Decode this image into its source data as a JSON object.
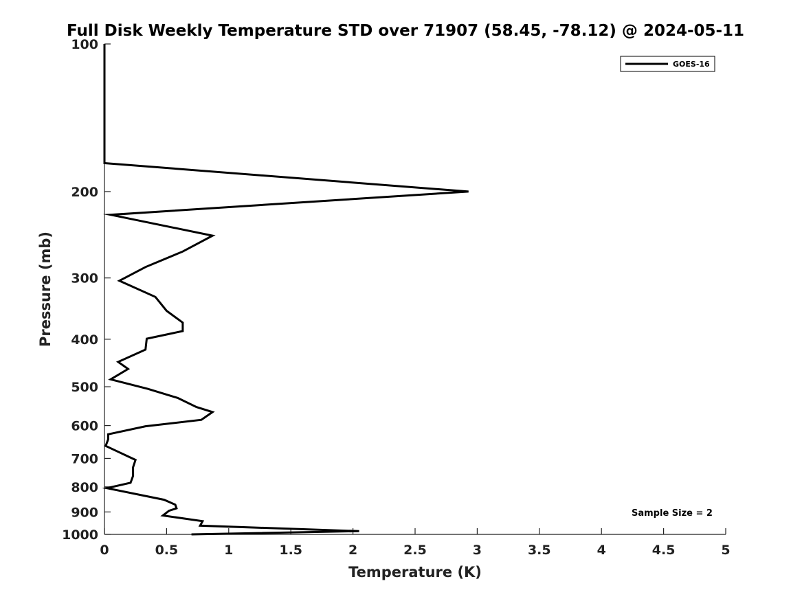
{
  "chart_data": {
    "type": "line",
    "title": "Full Disk Weekly Temperature STD over 71907 (58.45, -78.12) @ 2024-05-11",
    "xlabel": "Temperature (K)",
    "ylabel": "Pressure (mb)",
    "xlim": [
      0,
      5
    ],
    "ylim": [
      100,
      1000
    ],
    "y_scale": "log",
    "y_reversed": true,
    "grid": false,
    "legend_position": "top-right",
    "x_ticks": [
      "0",
      "0.5",
      "1",
      "1.5",
      "2",
      "2.5",
      "3",
      "3.5",
      "4",
      "4.5",
      "5"
    ],
    "y_ticks": [
      "100",
      "200",
      "300",
      "400",
      "500",
      "600",
      "700",
      "800",
      "900",
      "1000"
    ],
    "series": [
      {
        "name": "GOES-16",
        "color": "#000000",
        "points": [
          {
            "x": 0.0,
            "y": 100
          },
          {
            "x": 0.0,
            "y": 175
          },
          {
            "x": 2.93,
            "y": 200
          },
          {
            "x": 0.05,
            "y": 223
          },
          {
            "x": 0.87,
            "y": 246
          },
          {
            "x": 0.63,
            "y": 265
          },
          {
            "x": 0.33,
            "y": 285
          },
          {
            "x": 0.12,
            "y": 304
          },
          {
            "x": 0.41,
            "y": 328
          },
          {
            "x": 0.5,
            "y": 350
          },
          {
            "x": 0.63,
            "y": 370
          },
          {
            "x": 0.63,
            "y": 385
          },
          {
            "x": 0.34,
            "y": 399
          },
          {
            "x": 0.33,
            "y": 420
          },
          {
            "x": 0.11,
            "y": 445
          },
          {
            "x": 0.19,
            "y": 460
          },
          {
            "x": 0.05,
            "y": 483
          },
          {
            "x": 0.35,
            "y": 505
          },
          {
            "x": 0.59,
            "y": 527
          },
          {
            "x": 0.74,
            "y": 550
          },
          {
            "x": 0.87,
            "y": 563
          },
          {
            "x": 0.78,
            "y": 584
          },
          {
            "x": 0.33,
            "y": 602
          },
          {
            "x": 0.03,
            "y": 625
          },
          {
            "x": 0.03,
            "y": 640
          },
          {
            "x": 0.01,
            "y": 660
          },
          {
            "x": 0.08,
            "y": 673
          },
          {
            "x": 0.25,
            "y": 705
          },
          {
            "x": 0.23,
            "y": 730
          },
          {
            "x": 0.23,
            "y": 760
          },
          {
            "x": 0.21,
            "y": 785
          },
          {
            "x": 0.02,
            "y": 805
          },
          {
            "x": 0.48,
            "y": 850
          },
          {
            "x": 0.57,
            "y": 870
          },
          {
            "x": 0.58,
            "y": 885
          },
          {
            "x": 0.52,
            "y": 895
          },
          {
            "x": 0.47,
            "y": 915
          },
          {
            "x": 0.79,
            "y": 940
          },
          {
            "x": 0.77,
            "y": 960
          },
          {
            "x": 2.05,
            "y": 985
          },
          {
            "x": 0.7,
            "y": 1000
          }
        ]
      }
    ],
    "annotations": [
      {
        "text": "Sample Size = 2",
        "position": "bottom-right"
      }
    ]
  }
}
